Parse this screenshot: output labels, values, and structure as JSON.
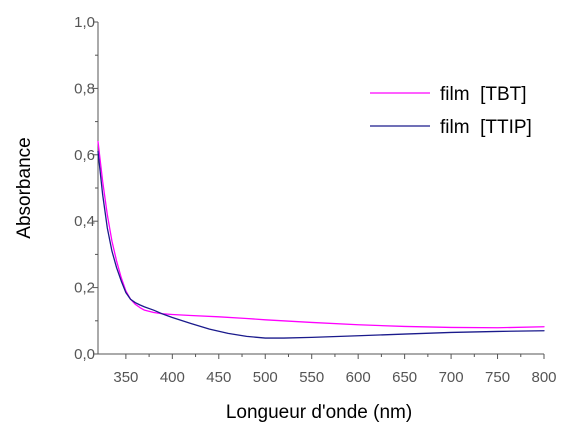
{
  "chart_data": {
    "type": "line",
    "title": "",
    "xlabel": "Longueur d'onde (nm)",
    "ylabel": "Absorbance",
    "xlim": [
      320,
      800
    ],
    "ylim": [
      0.0,
      1.0
    ],
    "x_ticks": [
      350,
      400,
      450,
      500,
      550,
      600,
      650,
      700,
      750,
      800
    ],
    "x_tick_labels": [
      "350",
      "400",
      "450",
      "500",
      "550",
      "600",
      "650",
      "700",
      "750",
      "800"
    ],
    "y_ticks": [
      0.0,
      0.2,
      0.4,
      0.6,
      0.8,
      1.0
    ],
    "y_tick_labels": [
      "0,0",
      "0,2",
      "0,4",
      "0,6",
      "0,8",
      "1,0"
    ],
    "grid": false,
    "legend_position": "top-right",
    "series": [
      {
        "name": "film  [TBT]",
        "color": "#ff00ff",
        "x": [
          320,
          325,
          330,
          335,
          340,
          345,
          350,
          355,
          360,
          365,
          370,
          380,
          390,
          400,
          420,
          450,
          480,
          500,
          550,
          600,
          650,
          700,
          750,
          800
        ],
        "y": [
          0.64,
          0.52,
          0.42,
          0.34,
          0.28,
          0.23,
          0.19,
          0.165,
          0.15,
          0.14,
          0.132,
          0.125,
          0.121,
          0.119,
          0.116,
          0.112,
          0.107,
          0.103,
          0.095,
          0.088,
          0.083,
          0.08,
          0.079,
          0.082
        ]
      },
      {
        "name": "film  [TTIP]",
        "color": "#1a1a8c",
        "x": [
          320,
          325,
          330,
          335,
          340,
          345,
          350,
          355,
          360,
          365,
          370,
          380,
          390,
          400,
          420,
          440,
          460,
          480,
          500,
          520,
          550,
          600,
          650,
          700,
          750,
          800
        ],
        "y": [
          0.61,
          0.48,
          0.38,
          0.31,
          0.26,
          0.22,
          0.185,
          0.165,
          0.155,
          0.148,
          0.142,
          0.132,
          0.12,
          0.11,
          0.092,
          0.075,
          0.062,
          0.053,
          0.048,
          0.048,
          0.05,
          0.055,
          0.06,
          0.065,
          0.068,
          0.07
        ]
      }
    ]
  }
}
